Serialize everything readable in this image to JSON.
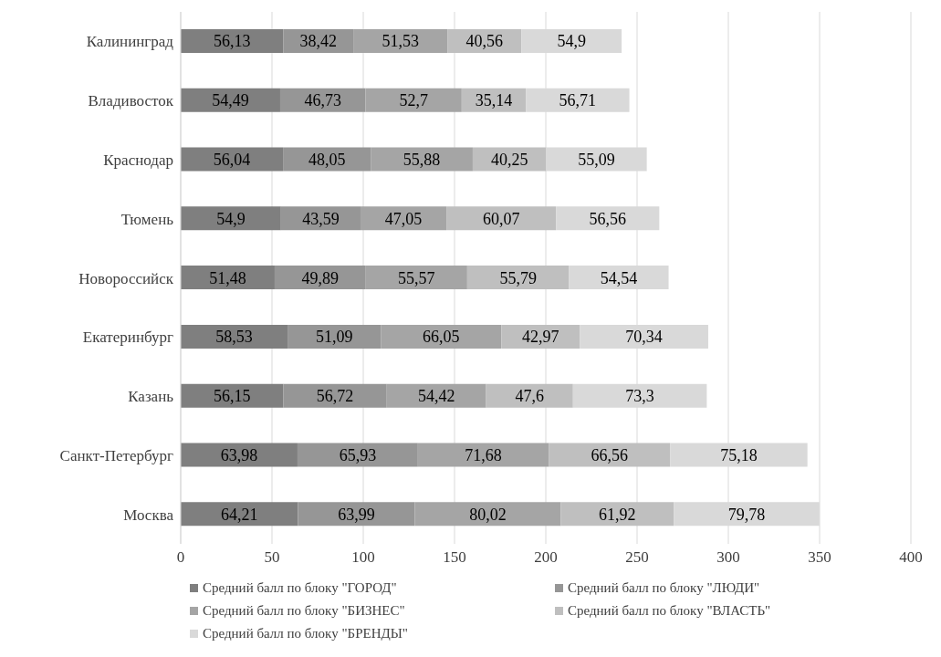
{
  "chart_data": {
    "type": "bar",
    "orientation": "horizontal",
    "stacked": true,
    "grid": "x",
    "legend": "bottom",
    "categories": [
      "Калининград",
      "Владивосток",
      "Краснодар",
      "Тюмень",
      "Новороссийск",
      "Екатеринбург",
      "Казань",
      "Санкт-Петербург",
      "Москва"
    ],
    "xlim": [
      0,
      400
    ],
    "xticks": [
      0,
      50,
      100,
      150,
      200,
      250,
      300,
      350,
      400
    ],
    "series": [
      {
        "name": "Средний балл по блоку \"ГОРОД\"",
        "color": "#7f7f7f",
        "values": [
          56.13,
          54.49,
          56.04,
          54.9,
          51.48,
          58.53,
          56.15,
          63.98,
          64.21
        ],
        "value_labels": [
          "56,13",
          "54,49",
          "56,04",
          "54,9",
          "51,48",
          "58,53",
          "56,15",
          "63,98",
          "64,21"
        ]
      },
      {
        "name": "Средний балл по блоку \"ЛЮДИ\"",
        "color": "#969696",
        "values": [
          38.42,
          46.73,
          48.05,
          43.59,
          49.89,
          51.09,
          56.72,
          65.93,
          63.99
        ],
        "value_labels": [
          "38,42",
          "46,73",
          "48,05",
          "43,59",
          "49,89",
          "51,09",
          "56,72",
          "65,93",
          "63,99"
        ]
      },
      {
        "name": "Средний балл по блоку \"БИЗНЕС\"",
        "color": "#a5a5a5",
        "values": [
          51.53,
          52.7,
          55.88,
          47.05,
          55.57,
          66.05,
          54.42,
          71.68,
          80.02
        ],
        "value_labels": [
          "51,53",
          "52,7",
          "55,88",
          "47,05",
          "55,57",
          "66,05",
          "54,42",
          "71,68",
          "80,02"
        ]
      },
      {
        "name": "Средний балл по блоку \"ВЛАСТЬ\"",
        "color": "#bfbfbf",
        "values": [
          40.56,
          35.14,
          40.25,
          60.07,
          55.79,
          42.97,
          47.6,
          66.56,
          61.92
        ],
        "value_labels": [
          "40,56",
          "35,14",
          "40,25",
          "60,07",
          "55,79",
          "42,97",
          "47,6",
          "66,56",
          "61,92"
        ]
      },
      {
        "name": "Средний балл по блоку \"БРЕНДЫ\"",
        "color": "#d9d9d9",
        "values": [
          54.9,
          56.71,
          55.09,
          56.56,
          54.54,
          70.34,
          73.3,
          75.18,
          79.78
        ],
        "value_labels": [
          "54,9",
          "56,71",
          "55,09",
          "56,56",
          "54,54",
          "70,34",
          "73,3",
          "75,18",
          "79,78"
        ]
      }
    ]
  }
}
